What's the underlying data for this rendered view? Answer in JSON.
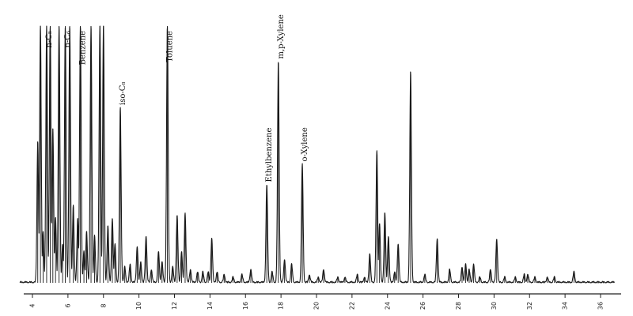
{
  "chart_data": {
    "type": "line",
    "title": "",
    "xlabel": "",
    "ylabel": "",
    "xlim": [
      3,
      37
    ],
    "ylim": [
      0,
      100
    ],
    "x_ticks": [
      4,
      6,
      8,
      10,
      12,
      14,
      16,
      18,
      20,
      22,
      24,
      26,
      28,
      30,
      32,
      34,
      36
    ],
    "x_tick_labels": [
      "4",
      "6",
      "8",
      "10",
      "12",
      "14",
      "16",
      "18",
      "20",
      "22",
      "24",
      "26",
      "28",
      "30",
      "32",
      "34",
      "36"
    ],
    "grid": false,
    "legend": "none",
    "peaks": [
      {
        "x": 4.3,
        "y": 55
      },
      {
        "x": 4.45,
        "y": 100
      },
      {
        "x": 4.6,
        "y": 20
      },
      {
        "x": 4.8,
        "y": 100
      },
      {
        "x": 5.0,
        "y": 100
      },
      {
        "x": 5.15,
        "y": 60
      },
      {
        "x": 5.3,
        "y": 25
      },
      {
        "x": 5.5,
        "y": 100
      },
      {
        "x": 5.7,
        "y": 15
      },
      {
        "x": 5.85,
        "y": 100
      },
      {
        "x": 6.1,
        "y": 100
      },
      {
        "x": 6.3,
        "y": 30
      },
      {
        "x": 6.55,
        "y": 25
      },
      {
        "x": 6.7,
        "y": 100
      },
      {
        "x": 6.9,
        "y": 12
      },
      {
        "x": 7.05,
        "y": 20
      },
      {
        "x": 7.3,
        "y": 100
      },
      {
        "x": 7.5,
        "y": 18
      },
      {
        "x": 7.8,
        "y": 100
      },
      {
        "x": 8.0,
        "y": 100
      },
      {
        "x": 8.25,
        "y": 22
      },
      {
        "x": 8.5,
        "y": 25
      },
      {
        "x": 8.65,
        "y": 15
      },
      {
        "x": 8.95,
        "y": 68
      },
      {
        "x": 9.2,
        "y": 6
      },
      {
        "x": 9.5,
        "y": 7
      },
      {
        "x": 9.9,
        "y": 14
      },
      {
        "x": 10.1,
        "y": 8
      },
      {
        "x": 10.4,
        "y": 18
      },
      {
        "x": 10.7,
        "y": 5
      },
      {
        "x": 11.1,
        "y": 12
      },
      {
        "x": 11.3,
        "y": 8
      },
      {
        "x": 11.6,
        "y": 100
      },
      {
        "x": 11.9,
        "y": 6
      },
      {
        "x": 12.15,
        "y": 26
      },
      {
        "x": 12.4,
        "y": 12
      },
      {
        "x": 12.6,
        "y": 27
      },
      {
        "x": 12.9,
        "y": 5
      },
      {
        "x": 13.3,
        "y": 4
      },
      {
        "x": 13.6,
        "y": 4
      },
      {
        "x": 13.9,
        "y": 4
      },
      {
        "x": 14.1,
        "y": 17
      },
      {
        "x": 14.4,
        "y": 4
      },
      {
        "x": 14.8,
        "y": 3
      },
      {
        "x": 15.3,
        "y": 2
      },
      {
        "x": 15.8,
        "y": 3
      },
      {
        "x": 16.3,
        "y": 5
      },
      {
        "x": 17.2,
        "y": 38
      },
      {
        "x": 17.5,
        "y": 4
      },
      {
        "x": 17.85,
        "y": 86
      },
      {
        "x": 18.2,
        "y": 9
      },
      {
        "x": 18.6,
        "y": 7
      },
      {
        "x": 19.2,
        "y": 46
      },
      {
        "x": 19.6,
        "y": 3
      },
      {
        "x": 20.1,
        "y": 2
      },
      {
        "x": 20.4,
        "y": 5
      },
      {
        "x": 21.2,
        "y": 2
      },
      {
        "x": 21.6,
        "y": 2
      },
      {
        "x": 22.3,
        "y": 3
      },
      {
        "x": 22.7,
        "y": 2
      },
      {
        "x": 23.0,
        "y": 11
      },
      {
        "x": 23.4,
        "y": 51
      },
      {
        "x": 23.55,
        "y": 23
      },
      {
        "x": 23.85,
        "y": 27
      },
      {
        "x": 24.05,
        "y": 18
      },
      {
        "x": 24.4,
        "y": 4
      },
      {
        "x": 24.6,
        "y": 15
      },
      {
        "x": 25.3,
        "y": 82
      },
      {
        "x": 26.1,
        "y": 3
      },
      {
        "x": 26.8,
        "y": 17
      },
      {
        "x": 27.5,
        "y": 5
      },
      {
        "x": 28.2,
        "y": 6
      },
      {
        "x": 28.4,
        "y": 7
      },
      {
        "x": 28.6,
        "y": 5
      },
      {
        "x": 28.85,
        "y": 7
      },
      {
        "x": 29.2,
        "y": 2
      },
      {
        "x": 29.8,
        "y": 5
      },
      {
        "x": 30.15,
        "y": 17
      },
      {
        "x": 30.6,
        "y": 2
      },
      {
        "x": 31.2,
        "y": 2
      },
      {
        "x": 31.7,
        "y": 3
      },
      {
        "x": 31.9,
        "y": 3
      },
      {
        "x": 32.3,
        "y": 2
      },
      {
        "x": 33.0,
        "y": 2
      },
      {
        "x": 33.4,
        "y": 2
      },
      {
        "x": 34.5,
        "y": 4
      }
    ],
    "annotations": [
      {
        "text": "n-C₅",
        "x": 4.8,
        "y": 100
      },
      {
        "text": "n-C₆",
        "x": 5.85,
        "y": 100
      },
      {
        "text": "Benzene",
        "x": 6.7,
        "y": 100
      },
      {
        "text": "iso-C₈",
        "x": 8.95,
        "y": 68
      },
      {
        "text": "Toluene",
        "x": 11.6,
        "y": 100
      },
      {
        "text": "Ethylbenzene",
        "x": 17.2,
        "y": 38
      },
      {
        "text": "m,p-Xylene",
        "x": 17.85,
        "y": 86
      },
      {
        "text": "o-Xylene",
        "x": 19.2,
        "y": 46
      }
    ]
  }
}
